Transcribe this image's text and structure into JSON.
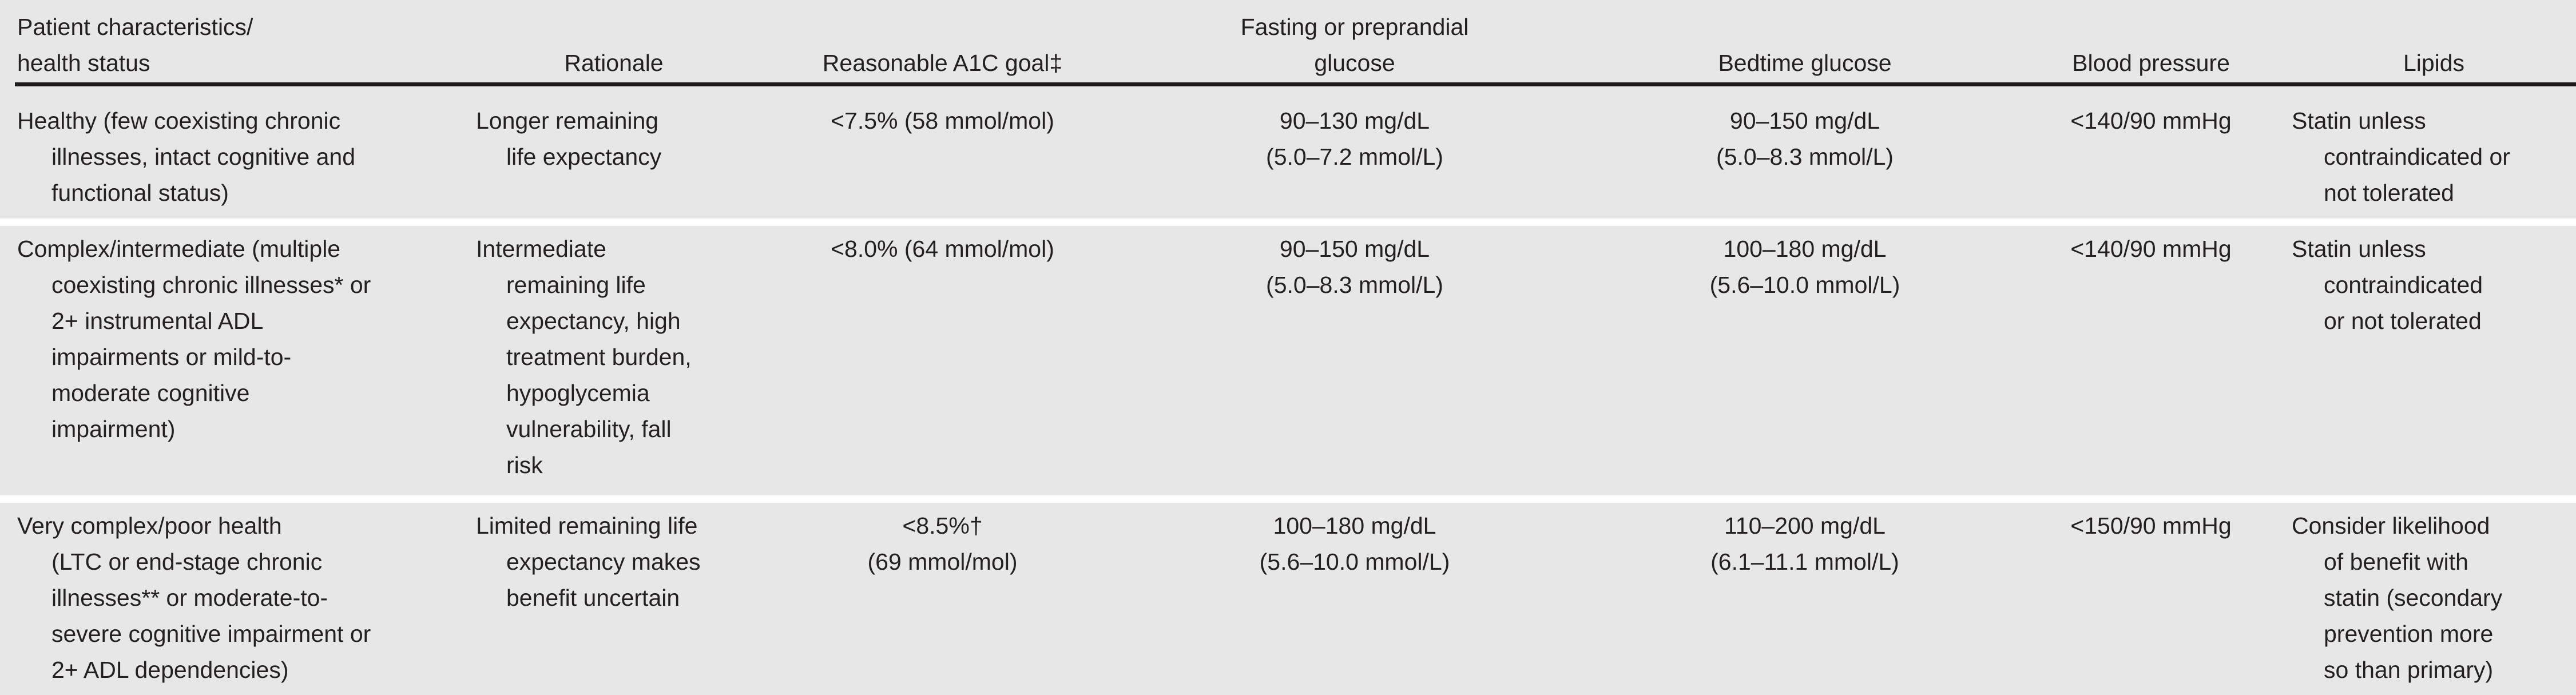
{
  "colors": {
    "background": "#e8e7e7",
    "text": "#242021",
    "header_rule": "#1c1a1b",
    "row_separator": "#ffffff"
  },
  "headers": {
    "patient_line1": "Patient characteristics/",
    "patient_line2": "health status",
    "rationale": "Rationale",
    "a1c": "Reasonable A1C goal‡",
    "fasting_line1": "Fasting or preprandial",
    "fasting_line2": "glucose",
    "bedtime": "Bedtime glucose",
    "bp": "Blood pressure",
    "lipids": "Lipids"
  },
  "rows": [
    {
      "patient": {
        "lines": [
          "Healthy (few coexisting chronic",
          "illnesses, intact cognitive and",
          "functional status)"
        ]
      },
      "rationale": {
        "lines": [
          "Longer remaining",
          "life expectancy"
        ]
      },
      "a1c": {
        "lines": [
          "<7.5% (58 mmol/mol)"
        ]
      },
      "fasting": {
        "lines": [
          "90–130 mg/dL",
          "(5.0–7.2 mmol/L)"
        ]
      },
      "bedtime": {
        "lines": [
          "90–150 mg/dL",
          "(5.0–8.3 mmol/L)"
        ]
      },
      "bp": {
        "lines": [
          "<140/90 mmHg"
        ]
      },
      "lipids": {
        "lines": [
          "Statin unless",
          "contraindicated or",
          "not tolerated"
        ]
      }
    },
    {
      "patient": {
        "lines": [
          "Complex/intermediate (multiple",
          "coexisting chronic illnesses* or",
          "2+ instrumental ADL",
          "impairments or mild-to-",
          "moderate cognitive",
          "impairment)"
        ]
      },
      "rationale": {
        "lines": [
          "Intermediate",
          "remaining life",
          "expectancy, high",
          "treatment burden,",
          "hypoglycemia",
          "vulnerability, fall",
          "risk"
        ]
      },
      "a1c": {
        "lines": [
          "<8.0% (64 mmol/mol)"
        ]
      },
      "fasting": {
        "lines": [
          "90–150 mg/dL",
          "(5.0–8.3 mmol/L)"
        ]
      },
      "bedtime": {
        "lines": [
          "100–180 mg/dL",
          "(5.6–10.0 mmol/L)"
        ]
      },
      "bp": {
        "lines": [
          "<140/90 mmHg"
        ]
      },
      "lipids": {
        "lines": [
          "Statin unless",
          "contraindicated",
          "or not tolerated"
        ]
      }
    },
    {
      "patient": {
        "lines": [
          "Very complex/poor health",
          "(LTC or end-stage chronic",
          "illnesses** or moderate-to-",
          "severe cognitive impairment or",
          "2+ ADL dependencies)"
        ]
      },
      "rationale": {
        "lines": [
          "Limited remaining life",
          "expectancy makes",
          "benefit uncertain"
        ]
      },
      "a1c": {
        "lines": [
          "<8.5%†",
          "(69 mmol/mol)"
        ]
      },
      "fasting": {
        "lines": [
          "100–180 mg/dL",
          "(5.6–10.0 mmol/L)"
        ]
      },
      "bedtime": {
        "lines": [
          "110–200 mg/dL",
          "(6.1–11.1 mmol/L)"
        ]
      },
      "bp": {
        "lines": [
          "<150/90 mmHg"
        ]
      },
      "lipids": {
        "lines": [
          "Consider likelihood",
          "of benefit with",
          "statin (secondary",
          "prevention more",
          "so than primary)"
        ]
      }
    }
  ]
}
